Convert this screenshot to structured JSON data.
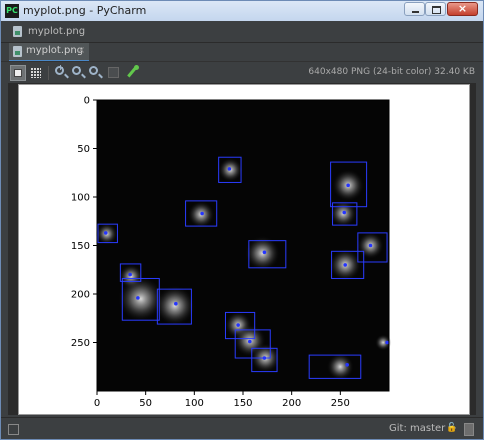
{
  "window": {
    "title": "myplot.png - PyCharm",
    "app_icon_text": "PC",
    "close_glyph": "×"
  },
  "navbar": {
    "label": "myplot.png"
  },
  "tab": {
    "label": "myplot.png",
    "close_glyph": "×"
  },
  "toolbar": {
    "image_info": "640x480 PNG (24-bit color) 32.40 KB",
    "zoom_in_glyph": "+",
    "zoom_out_glyph": "−"
  },
  "status": {
    "vcs": "Git: master ÷",
    "lock_glyph": "🔓"
  },
  "icons": [
    "pycharm-icon",
    "file-image-icon",
    "fit-zoom-icon",
    "grid-icon",
    "zoom-in-icon",
    "zoom-out-icon",
    "actual-size-icon",
    "toggle-icon",
    "color-picker-icon",
    "lock-icon",
    "memory-icon"
  ],
  "colors": {
    "accent": "#4a88c7",
    "box": "#2a3cff",
    "dot": "#2535ff"
  },
  "chart_data": {
    "type": "image",
    "x_ticks": [
      0,
      50,
      100,
      150,
      200,
      250
    ],
    "y_ticks": [
      0,
      50,
      100,
      150,
      200,
      250
    ],
    "xlim": [
      0,
      300
    ],
    "ylim": [
      300,
      0
    ],
    "blobs": [
      {
        "x": 137,
        "y": 72,
        "r": 9
      },
      {
        "x": 107,
        "y": 118,
        "r": 10
      },
      {
        "x": 258,
        "y": 88,
        "r": 12
      },
      {
        "x": 253,
        "y": 117,
        "r": 10
      },
      {
        "x": 10,
        "y": 138,
        "r": 8
      },
      {
        "x": 170,
        "y": 158,
        "r": 13
      },
      {
        "x": 281,
        "y": 150,
        "r": 10
      },
      {
        "x": 255,
        "y": 170,
        "r": 12
      },
      {
        "x": 35,
        "y": 182,
        "r": 9
      },
      {
        "x": 45,
        "y": 205,
        "r": 17
      },
      {
        "x": 80,
        "y": 212,
        "r": 15
      },
      {
        "x": 145,
        "y": 232,
        "r": 10
      },
      {
        "x": 157,
        "y": 248,
        "r": 12
      },
      {
        "x": 173,
        "y": 266,
        "r": 11
      },
      {
        "x": 250,
        "y": 275,
        "r": 10
      },
      {
        "x": 294,
        "y": 250,
        "r": 6
      }
    ],
    "boxes": [
      {
        "x0": 125,
        "x1": 148,
        "y0": 59,
        "y1": 85
      },
      {
        "x0": 91,
        "x1": 123,
        "y0": 104,
        "y1": 130
      },
      {
        "x0": 240,
        "x1": 277,
        "y0": 64,
        "y1": 110
      },
      {
        "x0": 242,
        "x1": 267,
        "y0": 106,
        "y1": 129
      },
      {
        "x0": 1,
        "x1": 21,
        "y0": 128,
        "y1": 147
      },
      {
        "x0": 156,
        "x1": 194,
        "y0": 145,
        "y1": 173
      },
      {
        "x0": 268,
        "x1": 298,
        "y0": 137,
        "y1": 167
      },
      {
        "x0": 241,
        "x1": 274,
        "y0": 156,
        "y1": 184
      },
      {
        "x0": 24,
        "x1": 45,
        "y0": 169,
        "y1": 187
      },
      {
        "x0": 26,
        "x1": 64,
        "y0": 184,
        "y1": 227
      },
      {
        "x0": 62,
        "x1": 97,
        "y0": 195,
        "y1": 231
      },
      {
        "x0": 132,
        "x1": 162,
        "y0": 219,
        "y1": 246
      },
      {
        "x0": 142,
        "x1": 178,
        "y0": 237,
        "y1": 266
      },
      {
        "x0": 159,
        "x1": 185,
        "y0": 256,
        "y1": 280
      },
      {
        "x0": 218,
        "x1": 271,
        "y0": 263,
        "y1": 287
      }
    ],
    "dots": [
      {
        "x": 136,
        "y": 71
      },
      {
        "x": 108,
        "y": 117
      },
      {
        "x": 258,
        "y": 88
      },
      {
        "x": 254,
        "y": 116
      },
      {
        "x": 9,
        "y": 137
      },
      {
        "x": 172,
        "y": 157
      },
      {
        "x": 281,
        "y": 150
      },
      {
        "x": 255,
        "y": 170
      },
      {
        "x": 34,
        "y": 180
      },
      {
        "x": 42,
        "y": 204
      },
      {
        "x": 81,
        "y": 210
      },
      {
        "x": 145,
        "y": 232
      },
      {
        "x": 157,
        "y": 249
      },
      {
        "x": 172,
        "y": 266
      },
      {
        "x": 257,
        "y": 273
      },
      {
        "x": 298,
        "y": 250
      }
    ]
  }
}
